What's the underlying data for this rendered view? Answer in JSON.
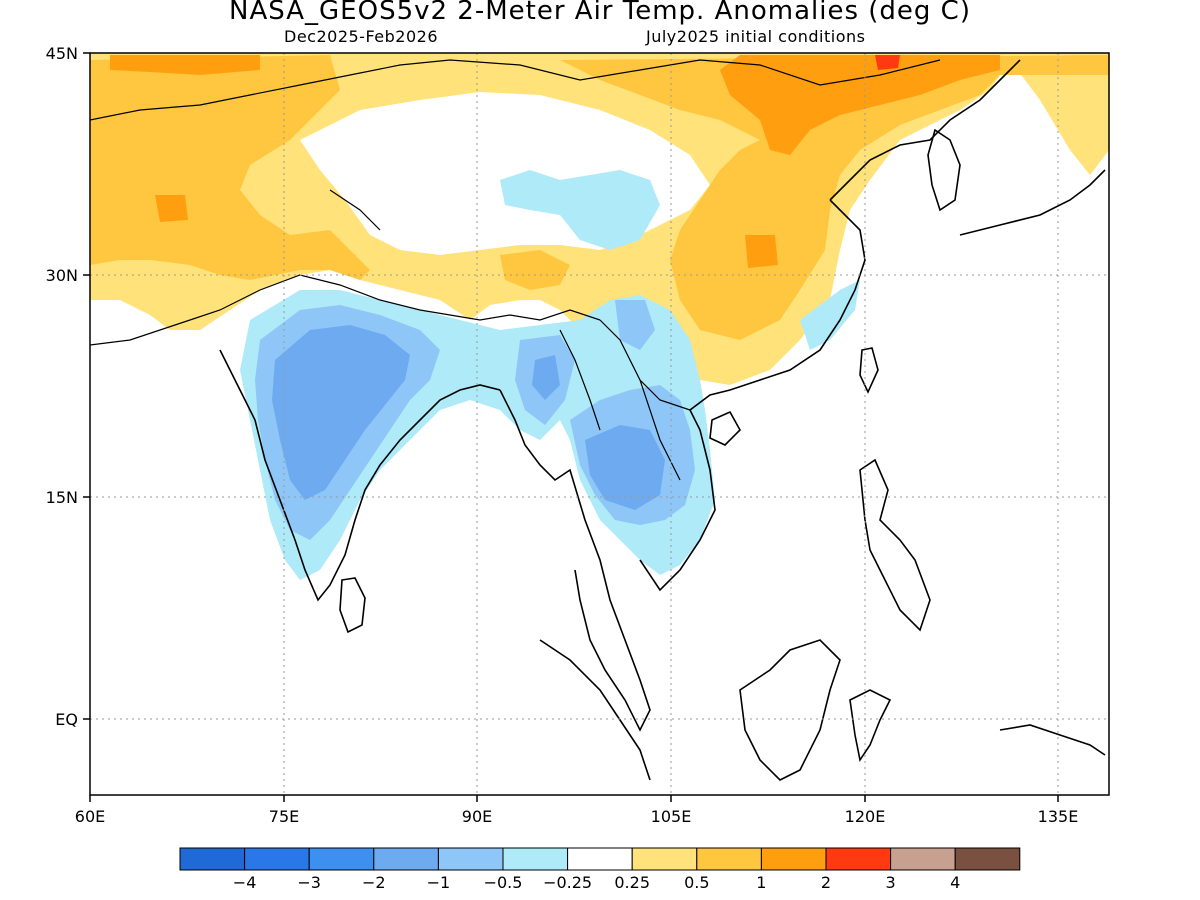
{
  "title": "NASA_GEOS5v2 2-Meter Air Temp. Anomalies (deg C)",
  "subtitle_left": "Dec2025-Feb2026",
  "subtitle_right": "July2025 initial conditions",
  "x_ticks": [
    "60E",
    "75E",
    "90E",
    "105E",
    "120E",
    "135E"
  ],
  "y_ticks": [
    "45N",
    "30N",
    "15N",
    "EQ"
  ],
  "map_extent": {
    "lon": [
      60,
      139
    ],
    "lat": [
      -5,
      45
    ]
  },
  "legend": {
    "labels": [
      "-4",
      "-3",
      "-2",
      "-1",
      "-0.5",
      "-0.25",
      "0.25",
      "0.5",
      "1",
      "2",
      "3",
      "4"
    ],
    "colors": [
      "#1f6ad6",
      "#2a78e8",
      "#3d8ff0",
      "#6eaaf0",
      "#8ec6f7",
      "#aeeaf7",
      "#ffffff",
      "#ffe27a",
      "#ffc640",
      "#ff9f10",
      "#ff3a10",
      "#c8a090",
      "#7a5040"
    ]
  },
  "colors": {
    "warm_light": "#ffe27a",
    "warm_mid": "#ffc640",
    "warm_strong": "#ff9f10",
    "hot": "#ff3a10",
    "cool_light": "#aeeaf7",
    "cool_mid": "#8ec6f7",
    "cool_strong": "#6eaaf0",
    "cool_deep": "#3d8ff0"
  }
}
